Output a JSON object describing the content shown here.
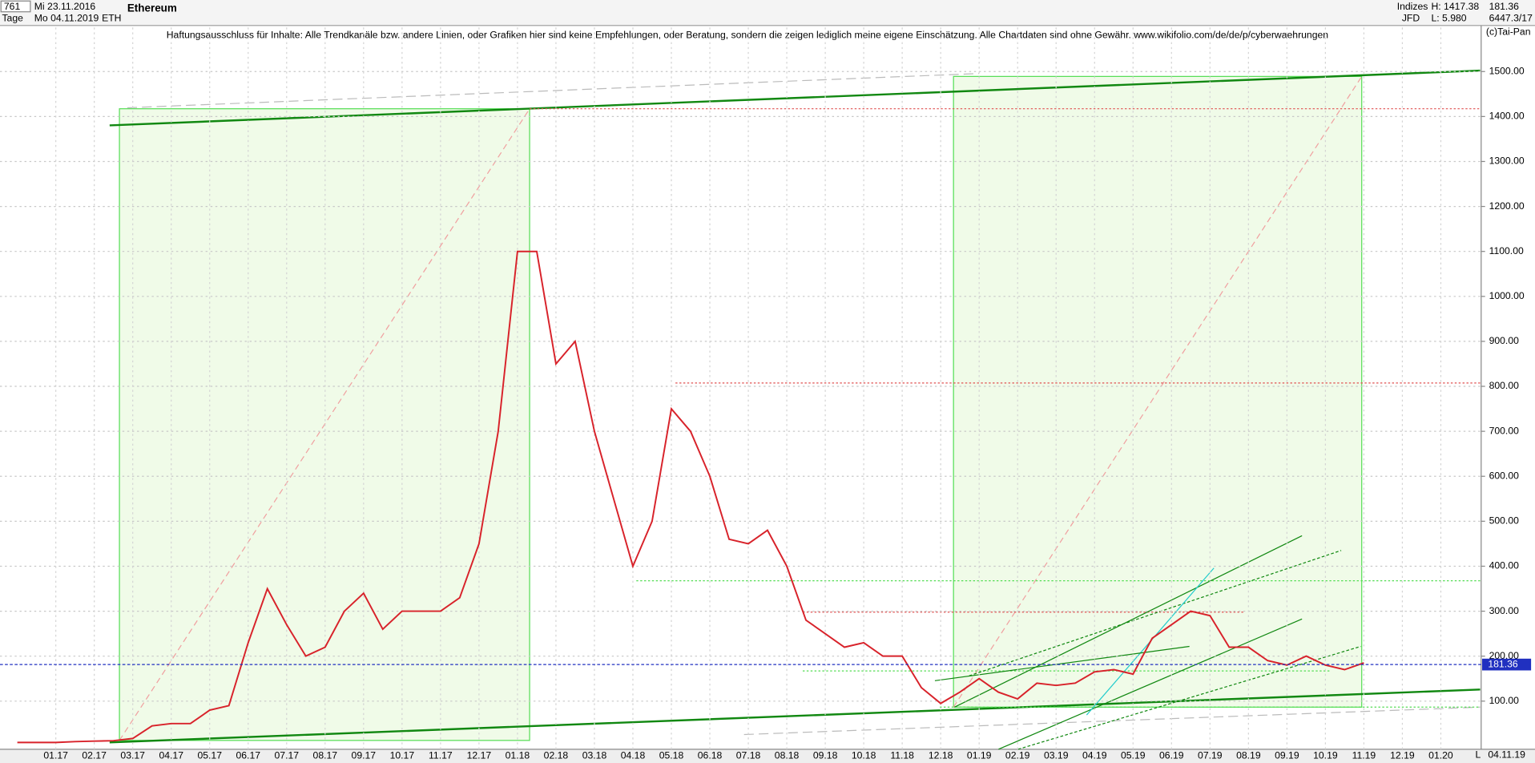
{
  "header": {
    "id": "761",
    "start_date": "Mi 23.11.2016",
    "period": "Tage",
    "end_date": "Mo 04.11.2019",
    "symbol": "ETH",
    "group": "Indizes",
    "source": "JFD",
    "high": "H: 1417.38",
    "low": "L: 5.980",
    "volume": "6447.3/17",
    "copyright": "(c)Tai-Pan",
    "end_label": "04.11.19",
    "scale_letter": "L"
  },
  "chart_data": {
    "type": "line",
    "title": "Ethereum",
    "subtitle": "Haftungsausschluss für Inhalte: Alle Trendkanäle bzw. andere Linien, oder Grafiken hier sind keine Empfehlungen, oder Beratung, sondern die zeigen lediglich meine eigene Einschätzung. Alle Chartdaten sind ohne Gewähr.  www.wikifolio.com/de/de/p/cyberwaehrungen",
    "categories": [
      null,
      null,
      "01.17",
      null,
      "02.17",
      null,
      "03.17",
      null,
      "04.17",
      null,
      "05.17",
      null,
      "06.17",
      null,
      "07.17",
      null,
      "08.17",
      null,
      "09.17",
      null,
      "10.17",
      null,
      "11.17",
      null,
      "12.17",
      null,
      "01.18",
      null,
      "02.18",
      null,
      "03.18",
      null,
      "04.18",
      null,
      "05.18",
      null,
      "06.18",
      null,
      "07.18",
      null,
      "08.18",
      null,
      "09.18",
      null,
      "10.18",
      null,
      "11.18",
      null,
      "12.18",
      null,
      "01.19",
      null,
      "02.19",
      null,
      "03.19",
      null,
      "04.19",
      null,
      "05.19",
      null,
      "06.19",
      null,
      "07.19",
      null,
      "08.19",
      null,
      "09.19",
      null,
      "10.19",
      null,
      "11.19",
      null,
      "12.19",
      null,
      "01.20",
      null
    ],
    "series": [
      {
        "name": "ETH",
        "color": "#d8222a",
        "values": [
          8,
          8,
          8,
          10,
          11,
          12,
          17,
          45,
          50,
          50,
          80,
          90,
          230,
          350,
          270,
          200,
          220,
          300,
          340,
          260,
          300,
          300,
          300,
          330,
          450,
          700,
          1100,
          1100,
          850,
          900,
          700,
          550,
          400,
          500,
          750,
          700,
          600,
          460,
          450,
          480,
          400,
          280,
          250,
          220,
          230,
          200,
          200,
          130,
          95,
          120,
          150,
          120,
          105,
          140,
          135,
          140,
          165,
          170,
          160,
          240,
          270,
          300,
          290,
          220,
          220,
          190,
          180,
          200,
          180,
          170,
          185,
          null,
          null,
          null,
          null,
          null
        ]
      }
    ],
    "last": 181.36,
    "ylim": [
      -7,
      1598
    ],
    "yticks": [
      {
        "value": 100,
        "label": "100.00"
      },
      {
        "value": 200,
        "label": "200.00"
      },
      {
        "value": 300,
        "label": "300.00"
      },
      {
        "value": 400,
        "label": "400.00"
      },
      {
        "value": 500,
        "label": "500.00"
      },
      {
        "value": 600,
        "label": "600.00"
      },
      {
        "value": 700,
        "label": "700.00"
      },
      {
        "value": 800,
        "label": "800.00"
      },
      {
        "value": 900,
        "label": "900.00"
      },
      {
        "value": 1000,
        "label": "1000.00"
      },
      {
        "value": 1100,
        "label": "1100.00"
      },
      {
        "value": 1200,
        "label": "1200.00"
      },
      {
        "value": 1300,
        "label": "1300.00"
      },
      {
        "value": 1400,
        "label": "1400.00"
      },
      {
        "value": 1500,
        "label": "1500.00"
      }
    ],
    "grid": true
  }
}
